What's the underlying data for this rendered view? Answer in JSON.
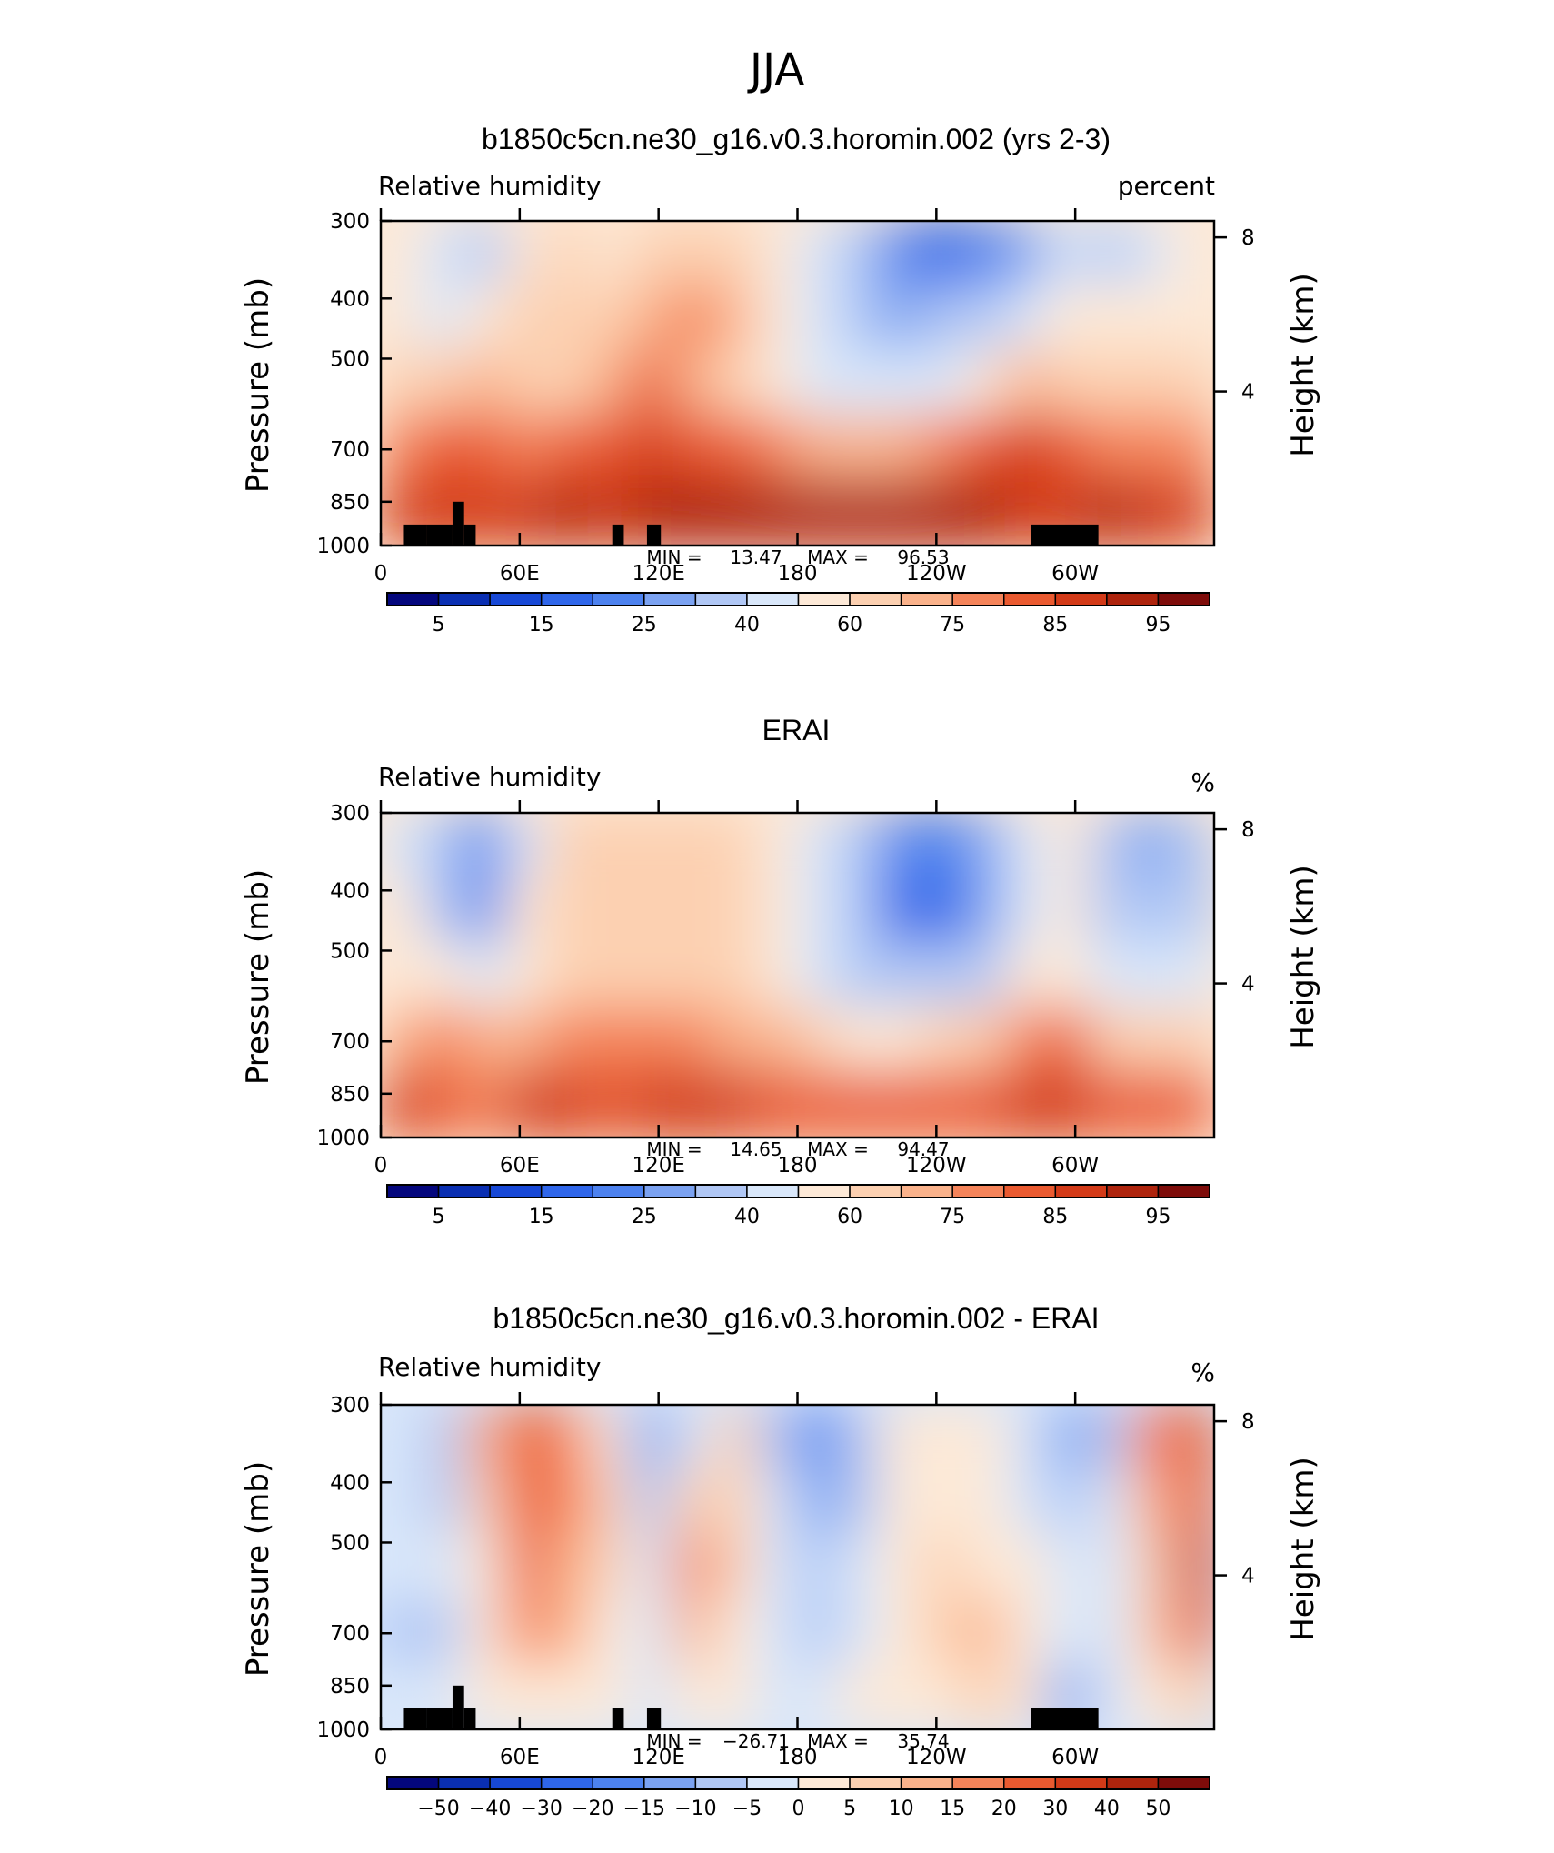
{
  "figure": {
    "title": "JJA"
  },
  "chart_data": [
    {
      "type": "heatmap",
      "title": "b1850c5cn.ne30_g16.v0.3.horomin.002 (yrs 2-3)",
      "left_label": "Relative humidity",
      "right_label": "percent",
      "ylabel": "Pressure (mb)",
      "ylabel_right": "Height (km)",
      "yticks": [
        "300",
        "400",
        "500",
        "700",
        "850",
        "1000"
      ],
      "yticks_values": [
        300,
        400,
        500,
        700,
        850,
        1000
      ],
      "yticks_right": [
        "8",
        "4"
      ],
      "yticks_right_values": [
        8,
        4
      ],
      "xticks": [
        "0",
        "60E",
        "120E",
        "180",
        "120W",
        "60W"
      ],
      "xticks_values": [
        0,
        60,
        120,
        180,
        240,
        300
      ],
      "xlim": [
        0,
        360
      ],
      "ylim": [
        1000,
        300
      ],
      "min_label": "MIN =",
      "min_value": "13.47",
      "max_label": "MAX =",
      "max_value": "96.53",
      "colorbar_labels": [
        "5",
        "15",
        "25",
        "40",
        "60",
        "75",
        "85",
        "95"
      ],
      "colorbar_levels": [
        5,
        10,
        15,
        20,
        25,
        30,
        40,
        50,
        60,
        70,
        75,
        80,
        85,
        90,
        95
      ],
      "field_cells": [
        [
          50,
          40,
          35,
          50,
          62,
          55,
          60,
          65,
          62,
          52,
          45,
          30,
          22,
          18,
          20,
          25,
          40,
          30,
          42,
          55
        ],
        [
          55,
          45,
          50,
          60,
          68,
          65,
          70,
          75,
          72,
          55,
          40,
          30,
          25,
          30,
          35,
          42,
          55,
          55,
          55,
          58
        ],
        [
          62,
          60,
          72,
          62,
          68,
          70,
          80,
          72,
          65,
          55,
          45,
          42,
          42,
          45,
          55,
          72,
          65,
          62,
          62,
          62
        ],
        [
          75,
          80,
          82,
          78,
          80,
          80,
          85,
          80,
          80,
          78,
          72,
          70,
          72,
          75,
          82,
          85,
          82,
          78,
          78,
          78
        ],
        [
          88,
          88,
          85,
          88,
          90,
          88,
          92,
          90,
          90,
          90,
          90,
          92,
          92,
          92,
          92,
          88,
          88,
          90,
          88,
          88
        ]
      ],
      "terrain": [
        {
          "lon": [
            10,
            20
          ],
          "p": 925
        },
        {
          "lon": [
            20,
            31
          ],
          "p": 925
        },
        {
          "lon": [
            31,
            36
          ],
          "p": 850
        },
        {
          "lon": [
            36,
            41
          ],
          "p": 925
        },
        {
          "lon": [
            100,
            105
          ],
          "p": 925
        },
        {
          "lon": [
            115,
            121
          ],
          "p": 925
        },
        {
          "lon": [
            281,
            310
          ],
          "p": 925
        }
      ]
    },
    {
      "type": "heatmap",
      "title": "ERAI",
      "left_label": "Relative humidity",
      "right_label": "%",
      "ylabel": "Pressure (mb)",
      "ylabel_right": "Height (km)",
      "yticks": [
        "300",
        "400",
        "500",
        "700",
        "850",
        "1000"
      ],
      "yticks_values": [
        300,
        400,
        500,
        700,
        850,
        1000
      ],
      "yticks_right": [
        "8",
        "4"
      ],
      "yticks_right_values": [
        8,
        4
      ],
      "xticks": [
        "0",
        "60E",
        "120E",
        "180",
        "120W",
        "60W"
      ],
      "xticks_values": [
        0,
        60,
        120,
        180,
        240,
        300
      ],
      "xlim": [
        0,
        360
      ],
      "ylim": [
        1000,
        300
      ],
      "min_label": "MIN =",
      "min_value": "14.65",
      "max_label": "MAX =",
      "max_value": "94.47",
      "colorbar_labels": [
        "5",
        "15",
        "25",
        "40",
        "60",
        "75",
        "85",
        "95"
      ],
      "colorbar_levels": [
        5,
        10,
        15,
        20,
        25,
        30,
        40,
        50,
        60,
        70,
        75,
        80,
        85,
        90,
        95
      ],
      "field_cells": [
        [
          45,
          30,
          20,
          45,
          62,
          65,
          62,
          62,
          62,
          55,
          40,
          30,
          22,
          20,
          25,
          40,
          50,
          35,
          28,
          38
        ],
        [
          50,
          38,
          22,
          50,
          62,
          60,
          62,
          65,
          62,
          55,
          40,
          30,
          18,
          18,
          25,
          42,
          50,
          38,
          30,
          35
        ],
        [
          55,
          55,
          42,
          50,
          62,
          62,
          62,
          65,
          62,
          55,
          45,
          35,
          30,
          30,
          38,
          55,
          50,
          45,
          42,
          45
        ],
        [
          72,
          75,
          72,
          72,
          75,
          75,
          78,
          75,
          72,
          70,
          62,
          58,
          58,
          60,
          62,
          78,
          80,
          62,
          62,
          60
        ],
        [
          85,
          82,
          78,
          85,
          85,
          82,
          85,
          85,
          85,
          82,
          82,
          82,
          82,
          82,
          82,
          85,
          88,
          82,
          82,
          82
        ]
      ],
      "terrain": []
    },
    {
      "type": "heatmap",
      "title": "b1850c5cn.ne30_g16.v0.3.horomin.002 - ERAI",
      "left_label": "Relative humidity",
      "right_label": "%",
      "ylabel": "Pressure (mb)",
      "ylabel_right": "Height (km)",
      "yticks": [
        "300",
        "400",
        "500",
        "700",
        "850",
        "1000"
      ],
      "yticks_values": [
        300,
        400,
        500,
        700,
        850,
        1000
      ],
      "yticks_right": [
        "8",
        "4"
      ],
      "yticks_right_values": [
        8,
        4
      ],
      "xticks": [
        "0",
        "60E",
        "120E",
        "180",
        "120W",
        "60W"
      ],
      "xticks_values": [
        0,
        60,
        120,
        180,
        240,
        300
      ],
      "xlim": [
        0,
        360
      ],
      "ylim": [
        1000,
        300
      ],
      "min_label": "MIN =",
      "min_value": "−26.71",
      "max_label": "MAX =",
      "max_value": "35.74",
      "colorbar_labels": [
        "−50",
        "−40",
        "−30",
        "−20",
        "−15",
        "−10",
        "−5",
        "0",
        "5",
        "10",
        "15",
        "20",
        "30",
        "40",
        "50"
      ],
      "colorbar_levels": [
        -50,
        -40,
        -30,
        -20,
        -15,
        -10,
        -5,
        0,
        5,
        10,
        15,
        20,
        30,
        40,
        50
      ],
      "field_cells": [
        [
          -2,
          -8,
          12,
          25,
          15,
          2,
          -15,
          -2,
          5,
          -8,
          -18,
          -6,
          2,
          4,
          0,
          -4,
          -12,
          -6,
          18,
          28
        ],
        [
          -2,
          -6,
          8,
          25,
          18,
          6,
          -10,
          8,
          8,
          -4,
          -15,
          -6,
          2,
          4,
          2,
          -2,
          -6,
          -4,
          12,
          28
        ],
        [
          -4,
          -4,
          3,
          22,
          12,
          6,
          -4,
          18,
          8,
          -4,
          -10,
          -4,
          4,
          6,
          4,
          0,
          -2,
          -2,
          8,
          30
        ],
        [
          -6,
          -6,
          2,
          15,
          10,
          3,
          -4,
          12,
          4,
          -2,
          -10,
          -2,
          4,
          6,
          14,
          0,
          -4,
          -2,
          6,
          28
        ],
        [
          -4,
          -2,
          0,
          4,
          3,
          0,
          -4,
          2,
          0,
          -2,
          -4,
          0,
          2,
          4,
          6,
          2,
          -12,
          -4,
          4,
          6
        ]
      ],
      "terrain": [
        {
          "lon": [
            10,
            20
          ],
          "p": 925
        },
        {
          "lon": [
            20,
            31
          ],
          "p": 925
        },
        {
          "lon": [
            31,
            36
          ],
          "p": 850
        },
        {
          "lon": [
            36,
            41
          ],
          "p": 925
        },
        {
          "lon": [
            100,
            105
          ],
          "p": 925
        },
        {
          "lon": [
            115,
            121
          ],
          "p": 925
        },
        {
          "lon": [
            281,
            310
          ],
          "p": 925
        }
      ]
    }
  ],
  "palette": [
    "#04077d",
    "#0a2fb2",
    "#1748d6",
    "#2f66ea",
    "#4d82ef",
    "#7ba2f1",
    "#b0c7f5",
    "#d9e7fa",
    "#fde9d7",
    "#fcd0b1",
    "#fab28b",
    "#f5845a",
    "#ea5a30",
    "#d33a18",
    "#ae240d",
    "#7e0c0a"
  ],
  "terrain_color": "#000000"
}
